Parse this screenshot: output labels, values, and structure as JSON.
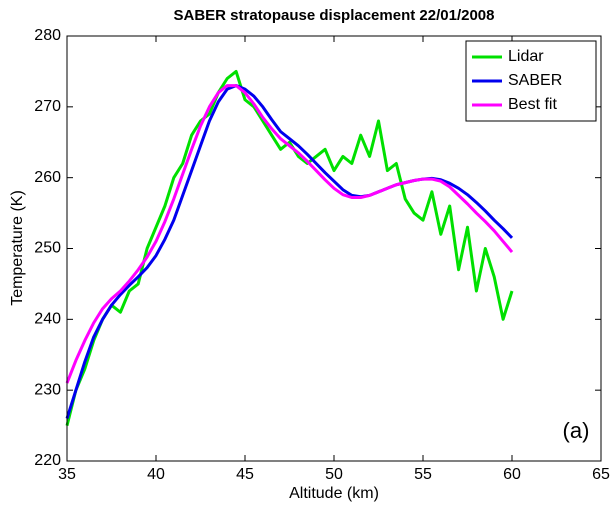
{
  "chart_data": {
    "type": "line",
    "title": "SABER stratopause displacement 22/01/2008",
    "x_label": "Altitude (km)",
    "y_label": "Temperature (K)",
    "annotation": "(a)",
    "xlim": [
      35,
      65
    ],
    "xticks": [
      35,
      40,
      45,
      50,
      55,
      60,
      65
    ],
    "ylim": [
      220,
      280
    ],
    "yticks": [
      220,
      230,
      240,
      250,
      260,
      270,
      280
    ],
    "legend": "upper right",
    "x": [
      35,
      35.5,
      36,
      36.5,
      37,
      37.5,
      38,
      38.5,
      39,
      39.5,
      40,
      40.5,
      41,
      41.5,
      42,
      42.5,
      43,
      43.5,
      44,
      44.5,
      45,
      45.5,
      46,
      46.5,
      47,
      47.5,
      48,
      48.5,
      49,
      49.5,
      50,
      50.5,
      51,
      51.5,
      52,
      52.5,
      53,
      53.5,
      54,
      54.5,
      55,
      55.5,
      56,
      56.5,
      57,
      57.5,
      58,
      58.5,
      59,
      59.5,
      60
    ],
    "series": [
      {
        "name": "Lidar",
        "color": "#00e000",
        "values": [
          225,
          230,
          233,
          237,
          240,
          242,
          241,
          244,
          245,
          250,
          253,
          256,
          260,
          262,
          266,
          268,
          269,
          272,
          274,
          275,
          271,
          270,
          268,
          266,
          264,
          265,
          263,
          262,
          263,
          264,
          261,
          263,
          262,
          266,
          263,
          268,
          261,
          262,
          257,
          255,
          254,
          258,
          252,
          256,
          247,
          253,
          244,
          250,
          246,
          240,
          244
        ]
      },
      {
        "name": "SABER",
        "color": "#0000ee",
        "values": [
          226,
          230,
          234,
          237.5,
          240,
          242,
          243.5,
          244.8,
          246,
          247.3,
          249,
          251.3,
          254,
          257.5,
          261,
          264.5,
          268,
          270.7,
          272.5,
          273,
          272.5,
          271.5,
          270,
          268.2,
          266.5,
          265.5,
          264.5,
          263.3,
          262,
          260.7,
          259.5,
          258.3,
          257.5,
          257.3,
          257.5,
          258,
          258.5,
          259,
          259.3,
          259.6,
          259.8,
          259.9,
          259.7,
          259.2,
          258.5,
          257.6,
          256.5,
          255.3,
          254,
          252.8,
          251.5
        ]
      },
      {
        "name": "Best fit",
        "color": "#ff00ff",
        "values": [
          231,
          234.2,
          237,
          239.5,
          241.5,
          242.9,
          244,
          245.4,
          247,
          248.8,
          251,
          253.8,
          257,
          260.5,
          264,
          267.3,
          270,
          272,
          273,
          273,
          272,
          270.4,
          268.5,
          266.9,
          265.5,
          264.5,
          263.5,
          262.3,
          261,
          259.7,
          258.5,
          257.6,
          257.2,
          257.2,
          257.5,
          258,
          258.5,
          259,
          259.3,
          259.6,
          259.8,
          259.8,
          259.5,
          258.7,
          257.5,
          256.3,
          255,
          253.8,
          252.5,
          251,
          249.5
        ]
      }
    ]
  }
}
